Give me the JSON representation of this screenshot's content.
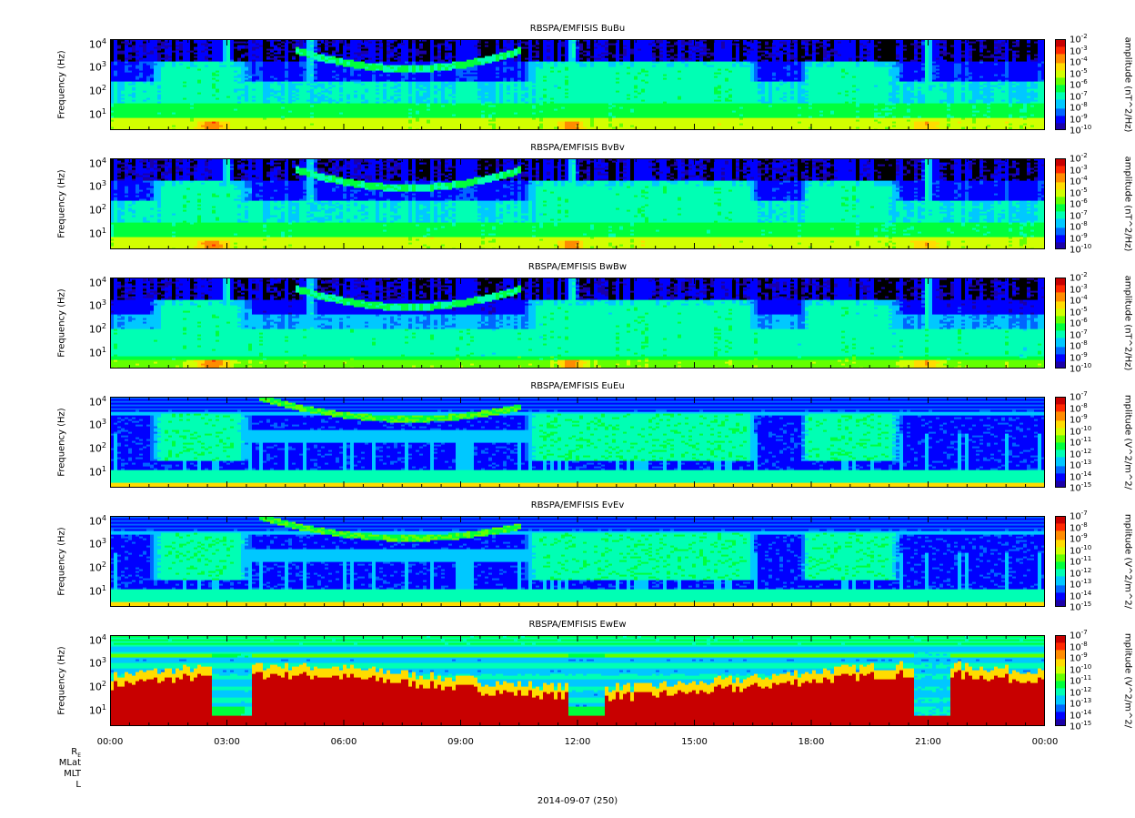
{
  "chart_data": [
    {
      "type": "heatmap",
      "title": "RBSPA/EMFISIS  BuBu",
      "ylabel": "Frequency (Hz)",
      "yticks": [
        {
          "b": "10",
          "e": "4"
        },
        {
          "b": "10",
          "e": "3"
        },
        {
          "b": "10",
          "e": "2"
        },
        {
          "b": "10",
          "e": "1"
        }
      ],
      "colorbar_label": "amplitude (nT^2/Hz)",
      "colorbar_ticks": [
        "-2",
        "-3",
        "-4",
        "-5",
        "-6",
        "-7",
        "-8",
        "-9",
        "-10"
      ],
      "zlim": [
        -10,
        -2
      ],
      "scale": "log",
      "variant": "B"
    },
    {
      "type": "heatmap",
      "title": "RBSPA/EMFISIS  BvBv",
      "ylabel": "Frequency (Hz)",
      "yticks": [
        {
          "b": "10",
          "e": "4"
        },
        {
          "b": "10",
          "e": "3"
        },
        {
          "b": "10",
          "e": "2"
        },
        {
          "b": "10",
          "e": "1"
        }
      ],
      "colorbar_label": "amplitude (nT^2/Hz)",
      "colorbar_ticks": [
        "-2",
        "-3",
        "-4",
        "-5",
        "-6",
        "-7",
        "-8",
        "-9",
        "-10"
      ],
      "zlim": [
        -10,
        -2
      ],
      "scale": "log",
      "variant": "B"
    },
    {
      "type": "heatmap",
      "title": "RBSPA/EMFISIS  BwBw",
      "ylabel": "Frequency (Hz)",
      "yticks": [
        {
          "b": "10",
          "e": "4"
        },
        {
          "b": "10",
          "e": "3"
        },
        {
          "b": "10",
          "e": "2"
        },
        {
          "b": "10",
          "e": "1"
        }
      ],
      "colorbar_label": "amplitude (nT^2/Hz)",
      "colorbar_ticks": [
        "-2",
        "-3",
        "-4",
        "-5",
        "-6",
        "-7",
        "-8",
        "-9",
        "-10"
      ],
      "zlim": [
        -10,
        -2
      ],
      "scale": "log",
      "variant": "Bw"
    },
    {
      "type": "heatmap",
      "title": "RBSPA/EMFISIS  EuEu",
      "ylabel": "Frequency (Hz)",
      "yticks": [
        {
          "b": "10",
          "e": "4"
        },
        {
          "b": "10",
          "e": "3"
        },
        {
          "b": "10",
          "e": "2"
        },
        {
          "b": "10",
          "e": "1"
        }
      ],
      "colorbar_label": "mplitude (V^2/m^2/",
      "colorbar_ticks": [
        "-7",
        "-8",
        "-9",
        "-10",
        "-11",
        "-12",
        "-13",
        "-14",
        "-15"
      ],
      "zlim": [
        -15,
        -7
      ],
      "scale": "log",
      "variant": "E"
    },
    {
      "type": "heatmap",
      "title": "RBSPA/EMFISIS  EvEv",
      "ylabel": "Frequency (Hz)",
      "yticks": [
        {
          "b": "10",
          "e": "4"
        },
        {
          "b": "10",
          "e": "3"
        },
        {
          "b": "10",
          "e": "2"
        },
        {
          "b": "10",
          "e": "1"
        }
      ],
      "colorbar_label": "mplitude (V^2/m^2/",
      "colorbar_ticks": [
        "-7",
        "-8",
        "-9",
        "-10",
        "-11",
        "-12",
        "-13",
        "-14",
        "-15"
      ],
      "zlim": [
        -15,
        -7
      ],
      "scale": "log",
      "variant": "E"
    },
    {
      "type": "heatmap",
      "title": "RBSPA/EMFISIS  EwEw",
      "ylabel": "Frequency (Hz)",
      "yticks": [
        {
          "b": "10",
          "e": "4"
        },
        {
          "b": "10",
          "e": "3"
        },
        {
          "b": "10",
          "e": "2"
        },
        {
          "b": "10",
          "e": "1"
        }
      ],
      "colorbar_label": "mplitude (V^2/m^2/",
      "colorbar_ticks": [
        "-7",
        "-8",
        "-9",
        "-10",
        "-11",
        "-12",
        "-13",
        "-14",
        "-15"
      ],
      "zlim": [
        -15,
        -7
      ],
      "scale": "log",
      "variant": "Ew"
    }
  ],
  "x_axis": {
    "ticks": [
      "00:00",
      "03:00",
      "06:00",
      "09:00",
      "12:00",
      "15:00",
      "18:00",
      "21:00",
      "00:00"
    ],
    "ephemeris_labels": [
      {
        "base": "R",
        "sub": "E"
      },
      {
        "base": "MLat",
        "sub": ""
      },
      {
        "base": "MLT",
        "sub": ""
      },
      {
        "base": "L",
        "sub": ""
      }
    ],
    "date_label": "2014-09-07 (250)"
  },
  "colormap": [
    "#1a00a8",
    "#0000ff",
    "#0066ff",
    "#00c8ff",
    "#00ffb4",
    "#00ff3c",
    "#64ff00",
    "#d2ff00",
    "#ffdc00",
    "#ff8c00",
    "#ff2800",
    "#c80000"
  ]
}
